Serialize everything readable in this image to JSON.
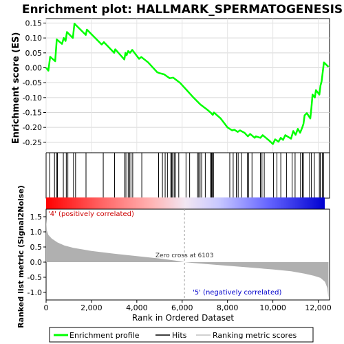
{
  "chart_data": [
    {
      "type": "line",
      "title": "Enrichment plot: HALLMARK_SPERMATOGENESIS",
      "ylabel": "Enrichment score (ES)",
      "ylim": [
        -0.285,
        0.165
      ],
      "yticks": [
        0.15,
        0.1,
        0.05,
        0.0,
        -0.05,
        -0.1,
        -0.15,
        -0.2,
        -0.25
      ],
      "ytick_labels": [
        "0.15",
        "0.10",
        "0.05",
        "0.00",
        "-0.05",
        "-0.10",
        "-0.15",
        "-0.20",
        "-0.25"
      ],
      "grid": true,
      "line_color": "#00ff00",
      "series": [
        {
          "name": "Enrichment profile",
          "points": [
            [
              0,
              0.0
            ],
            [
              100,
              -0.01
            ],
            [
              180,
              0.037
            ],
            [
              400,
              0.022
            ],
            [
              470,
              0.095
            ],
            [
              700,
              0.08
            ],
            [
              780,
              0.1
            ],
            [
              860,
              0.09
            ],
            [
              920,
              0.12
            ],
            [
              1180,
              0.1
            ],
            [
              1250,
              0.148
            ],
            [
              1750,
              0.11
            ],
            [
              1800,
              0.128
            ],
            [
              2450,
              0.078
            ],
            [
              2550,
              0.086
            ],
            [
              3000,
              0.05
            ],
            [
              3050,
              0.062
            ],
            [
              3450,
              0.028
            ],
            [
              3500,
              0.05
            ],
            [
              3550,
              0.042
            ],
            [
              3620,
              0.056
            ],
            [
              3700,
              0.05
            ],
            [
              3800,
              0.06
            ],
            [
              4100,
              0.03
            ],
            [
              4200,
              0.036
            ],
            [
              4500,
              0.018
            ],
            [
              4900,
              -0.015
            ],
            [
              5000,
              -0.018
            ],
            [
              5200,
              -0.022
            ],
            [
              5450,
              -0.035
            ],
            [
              5600,
              -0.033
            ],
            [
              5900,
              -0.05
            ],
            [
              6200,
              -0.075
            ],
            [
              6500,
              -0.1
            ],
            [
              6800,
              -0.123
            ],
            [
              7100,
              -0.14
            ],
            [
              7250,
              -0.15
            ],
            [
              7350,
              -0.158
            ],
            [
              7400,
              -0.15
            ],
            [
              7700,
              -0.17
            ],
            [
              8000,
              -0.2
            ],
            [
              8200,
              -0.21
            ],
            [
              8300,
              -0.208
            ],
            [
              8450,
              -0.215
            ],
            [
              8550,
              -0.21
            ],
            [
              8750,
              -0.218
            ],
            [
              8900,
              -0.23
            ],
            [
              9000,
              -0.222
            ],
            [
              9200,
              -0.235
            ],
            [
              9250,
              -0.23
            ],
            [
              9450,
              -0.235
            ],
            [
              9550,
              -0.226
            ],
            [
              9850,
              -0.245
            ],
            [
              10000,
              -0.256
            ],
            [
              10100,
              -0.24
            ],
            [
              10250,
              -0.248
            ],
            [
              10350,
              -0.235
            ],
            [
              10450,
              -0.242
            ],
            [
              10550,
              -0.226
            ],
            [
              10800,
              -0.238
            ],
            [
              10900,
              -0.212
            ],
            [
              11000,
              -0.225
            ],
            [
              11100,
              -0.205
            ],
            [
              11200,
              -0.218
            ],
            [
              11300,
              -0.2
            ],
            [
              11350,
              -0.188
            ],
            [
              11400,
              -0.16
            ],
            [
              11500,
              -0.152
            ],
            [
              11650,
              -0.17
            ],
            [
              11700,
              -0.135
            ],
            [
              11750,
              -0.09
            ],
            [
              11850,
              -0.1
            ],
            [
              11900,
              -0.075
            ],
            [
              12050,
              -0.09
            ],
            [
              12100,
              -0.06
            ],
            [
              12150,
              -0.045
            ],
            [
              12250,
              0.018
            ],
            [
              12450,
              0.003
            ]
          ]
        }
      ],
      "hits": [
        160,
        370,
        460,
        500,
        760,
        890,
        960,
        1210,
        1300,
        1760,
        2520,
        3020,
        3460,
        3520,
        3620,
        3680,
        3740,
        3820,
        4220,
        4960,
        5130,
        5250,
        5350,
        5500,
        5540,
        5580,
        5650,
        5700,
        5850,
        6170,
        6330,
        6680,
        6730,
        6790,
        6860,
        7020,
        7260,
        7280,
        7310,
        7350,
        7380,
        8100,
        8250,
        8390,
        8470,
        8620,
        8880,
        8930,
        9080,
        9450,
        9520,
        9620,
        10030,
        10180,
        10350,
        10600,
        10850,
        10980,
        11220,
        11300,
        11350,
        11620,
        11700,
        11830,
        12050,
        12090,
        12180,
        12240
      ]
    },
    {
      "type": "area",
      "xlabel": "Rank in Ordered Dataset",
      "ylabel": "Ranked list metric (Signal2Noise)",
      "xlim": [
        0,
        12500
      ],
      "xticks": [
        0,
        2000,
        4000,
        6000,
        8000,
        10000,
        12000
      ],
      "xtick_labels": [
        "0",
        "2,000",
        "4,000",
        "6,000",
        "8,000",
        "10,000",
        "12,000"
      ],
      "ylim": [
        -1.25,
        1.75
      ],
      "yticks": [
        1.5,
        1.0,
        0.5,
        0.0,
        -0.5,
        -1.0
      ],
      "ytick_labels": [
        "1.5",
        "1.0",
        "0.5",
        "0.0",
        "-0.5",
        "-1.0"
      ],
      "fill_color": "#b0b0b0",
      "zero_cross": 6103,
      "zero_cross_label": "Zero cross at 6103",
      "positive_label": "'4' (positively correlated)",
      "negative_label": "'5' (negatively correlated)",
      "metric_points": [
        [
          0,
          1.45
        ],
        [
          30,
          1.05
        ],
        [
          100,
          0.9
        ],
        [
          250,
          0.78
        ],
        [
          500,
          0.65
        ],
        [
          800,
          0.55
        ],
        [
          1200,
          0.47
        ],
        [
          2000,
          0.37
        ],
        [
          3000,
          0.28
        ],
        [
          4000,
          0.2
        ],
        [
          5000,
          0.12
        ],
        [
          5800,
          0.04
        ],
        [
          6103,
          0.0
        ],
        [
          6500,
          -0.03
        ],
        [
          7000,
          -0.06
        ],
        [
          8000,
          -0.12
        ],
        [
          9000,
          -0.18
        ],
        [
          10000,
          -0.24
        ],
        [
          10800,
          -0.3
        ],
        [
          11400,
          -0.38
        ],
        [
          11800,
          -0.45
        ],
        [
          12100,
          -0.52
        ],
        [
          12300,
          -0.65
        ],
        [
          12400,
          -0.85
        ],
        [
          12450,
          -1.18
        ]
      ]
    }
  ],
  "legend": {
    "items": [
      {
        "label": "Enrichment profile",
        "color": "#00ff00"
      },
      {
        "label": "Hits",
        "color": "#000000"
      },
      {
        "label": "Ranking metric scores",
        "color": "#c0c0c0"
      }
    ]
  }
}
